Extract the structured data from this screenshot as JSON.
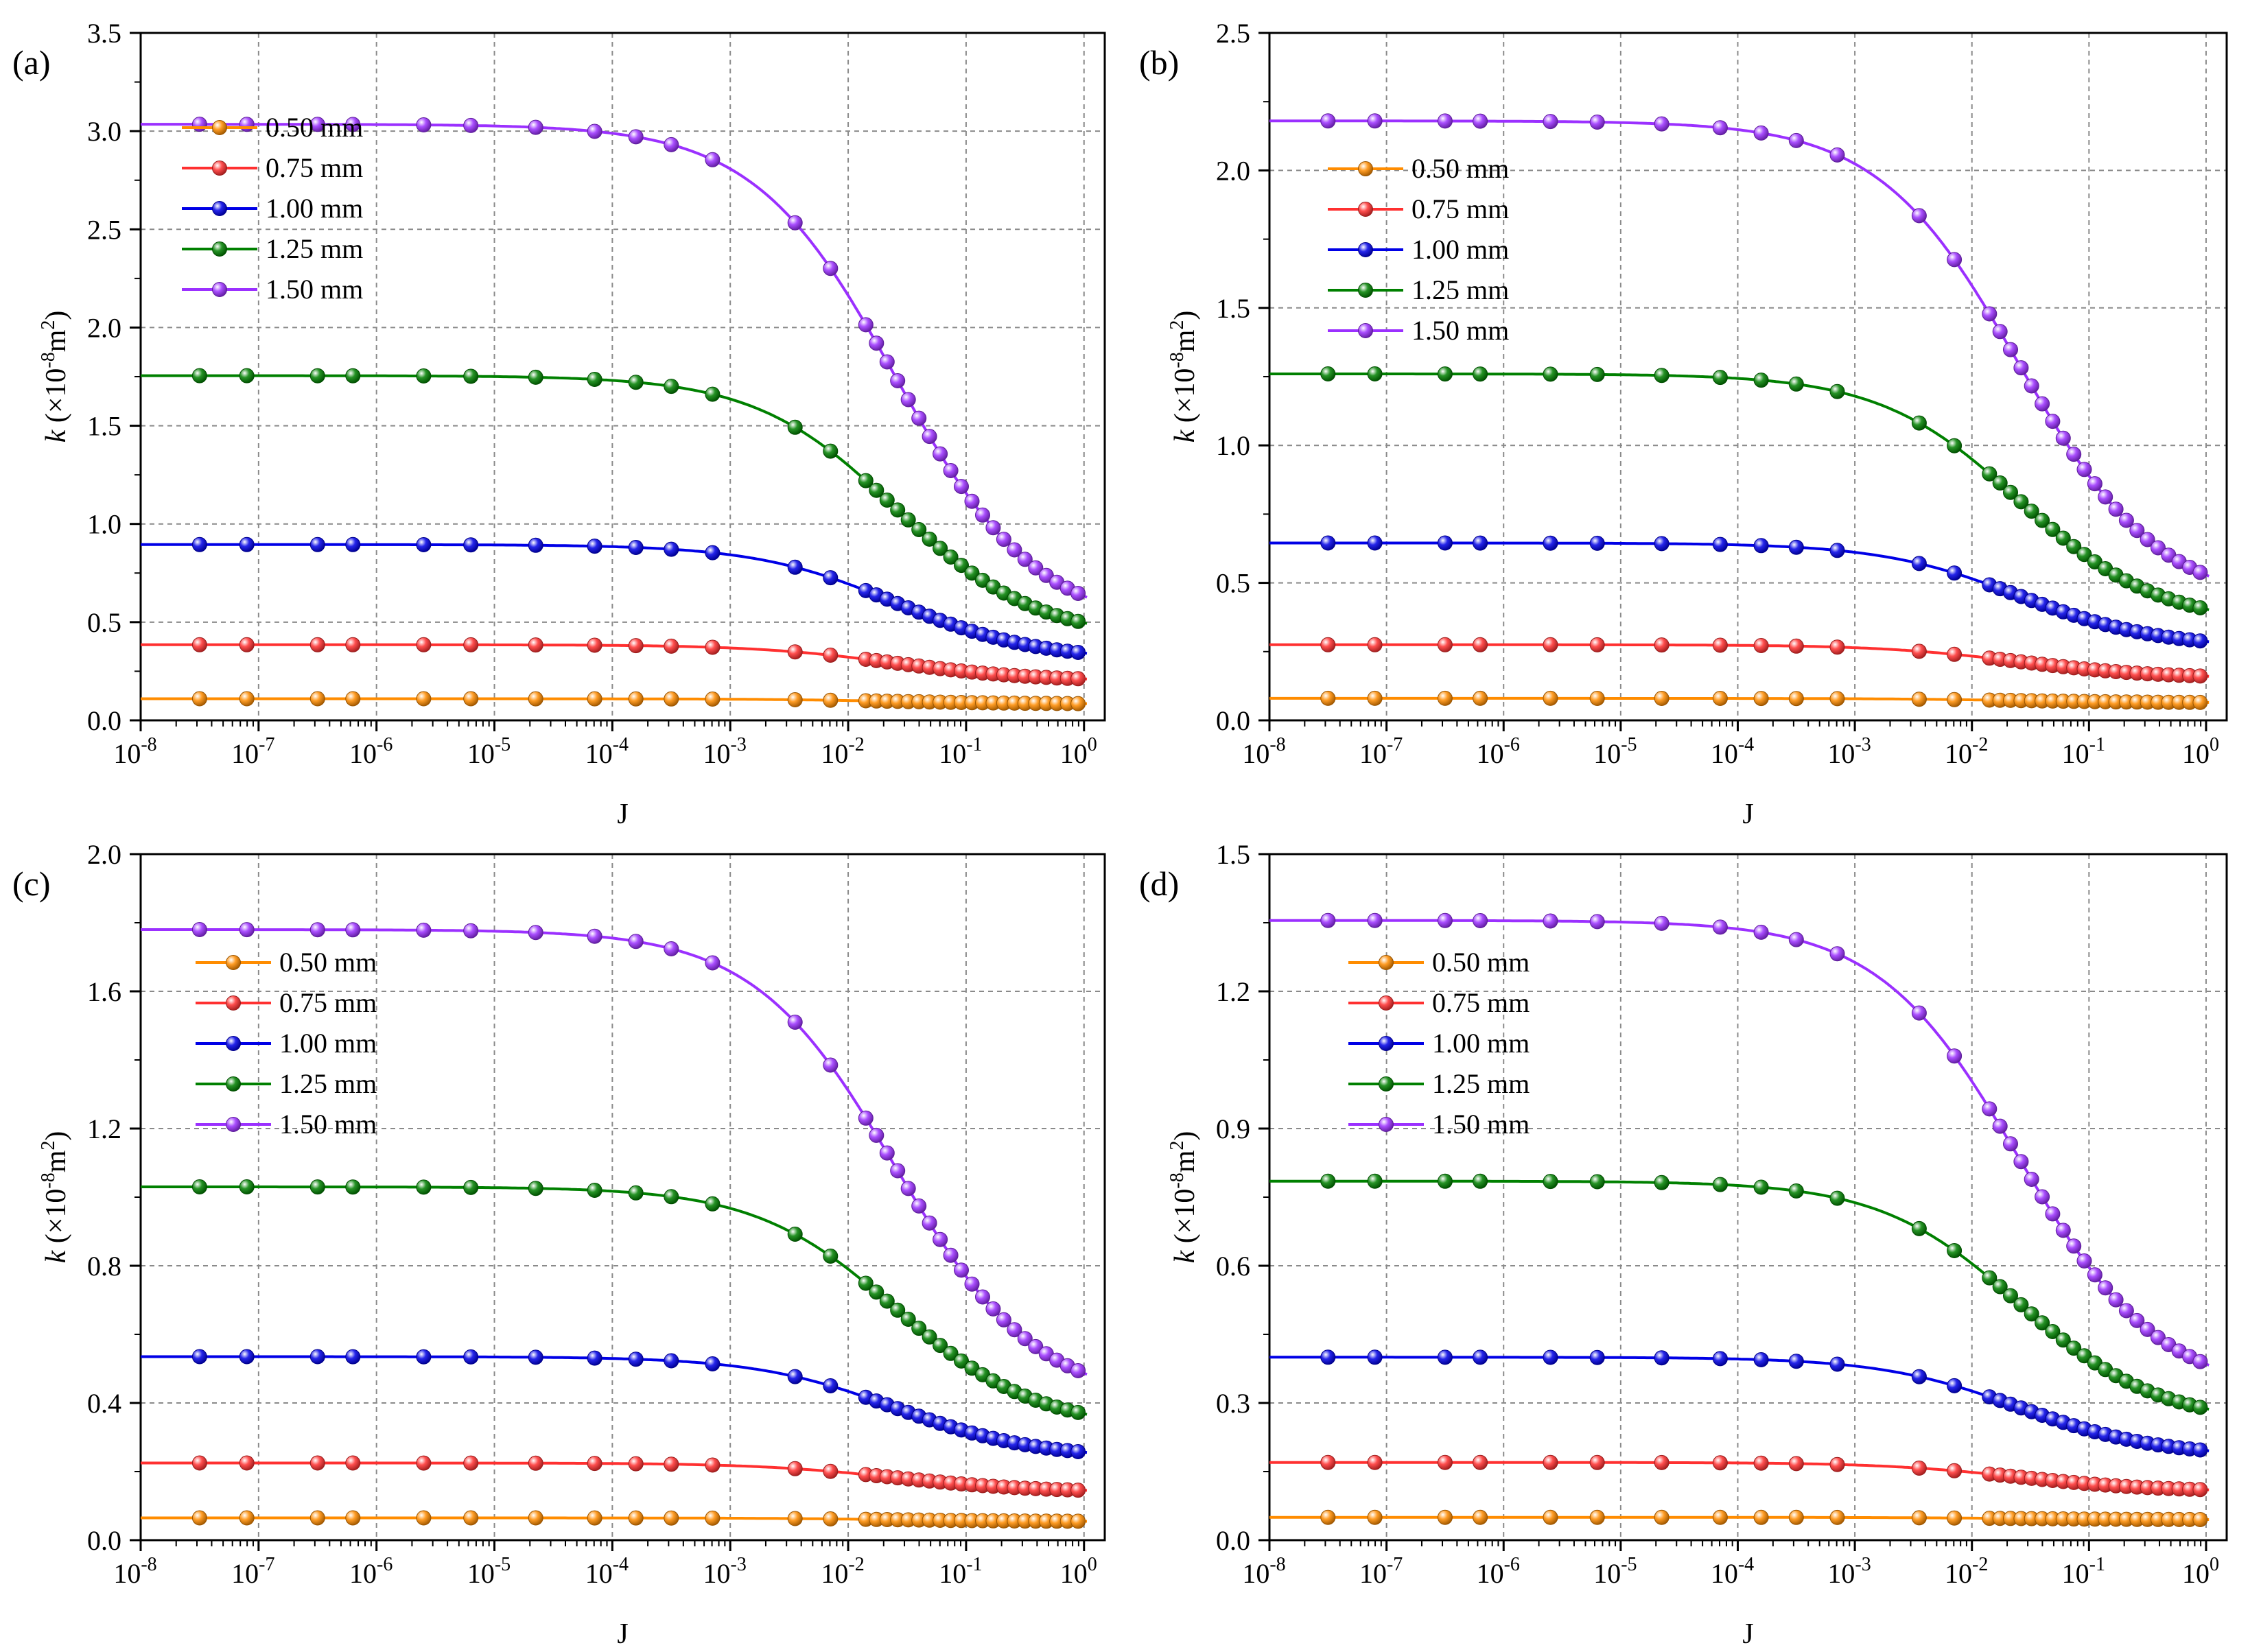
{
  "figure": {
    "legend_entries": [
      "0.50 mm",
      "0.75 mm",
      "1.00 mm",
      "1.25 mm",
      "1.50 mm"
    ],
    "series_colors": [
      "#ff8c00",
      "#ff3030",
      "#0000e6",
      "#008000",
      "#9b30ff"
    ]
  },
  "chart_data": [
    {
      "type": "line",
      "panel_label": "(a)",
      "xlabel": "J",
      "ylabel_prefix": "k",
      "ylabel_rest": " (×10",
      "ylabel_exp": "-8",
      "ylabel_unit": "m",
      "ylabel_unit_exp": "2",
      "ylabel_close": ")",
      "xscale": "log",
      "xlim": [
        1e-08,
        1.5
      ],
      "ylim": [
        0,
        3.5
      ],
      "xtick_exponents": [
        "-8",
        "-7",
        "-6",
        "-5",
        "-4",
        "-3",
        "-2",
        "-1",
        "0"
      ],
      "ytick_values": [
        0,
        0.5,
        1,
        1.5,
        2,
        2.5,
        3,
        3.5
      ],
      "ytick_labels": [
        "0.0",
        "0.5",
        "1.0",
        "1.5",
        "2.0",
        "2.5",
        "3.0",
        "3.5"
      ],
      "grid": true,
      "legend_position": "top-left",
      "series": [
        {
          "name": "0.50 mm",
          "plateau": 0.11,
          "end": 0.085
        },
        {
          "name": "0.75 mm",
          "plateau": 0.385,
          "end": 0.21
        },
        {
          "name": "1.00 mm",
          "plateau": 0.895,
          "end": 0.34
        },
        {
          "name": "1.25 mm",
          "plateau": 1.755,
          "end": 0.49
        },
        {
          "name": "1.50 mm",
          "plateau": 3.035,
          "end": 0.62
        }
      ]
    },
    {
      "type": "line",
      "panel_label": "(b)",
      "xlabel": "J",
      "ylabel_prefix": "k",
      "ylabel_rest": " (×10",
      "ylabel_exp": "-8",
      "ylabel_unit": "m",
      "ylabel_unit_exp": "2",
      "ylabel_close": ")",
      "xscale": "log",
      "xlim": [
        1e-08,
        1.5
      ],
      "ylim": [
        0,
        2.5
      ],
      "xtick_exponents": [
        "-8",
        "-7",
        "-6",
        "-5",
        "-4",
        "-3",
        "-2",
        "-1",
        "0"
      ],
      "ytick_values": [
        0,
        0.5,
        1,
        1.5,
        2,
        2.5
      ],
      "ytick_labels": [
        "0.0",
        "0.5",
        "1.0",
        "1.5",
        "2.0",
        "2.5"
      ],
      "grid": true,
      "legend_position": "top-left",
      "series": [
        {
          "name": "0.50 mm",
          "plateau": 0.08,
          "end": 0.065
        },
        {
          "name": "0.75 mm",
          "plateau": 0.275,
          "end": 0.16
        },
        {
          "name": "1.00 mm",
          "plateau": 0.645,
          "end": 0.285
        },
        {
          "name": "1.25 mm",
          "plateau": 1.26,
          "end": 0.4
        },
        {
          "name": "1.50 mm",
          "plateau": 2.18,
          "end": 0.52
        }
      ]
    },
    {
      "type": "line",
      "panel_label": "(c)",
      "xlabel": "J",
      "ylabel_prefix": "k",
      "ylabel_rest": " (×10",
      "ylabel_exp": "-8",
      "ylabel_unit": "m",
      "ylabel_unit_exp": "2",
      "ylabel_close": ")",
      "xscale": "log",
      "xlim": [
        1e-08,
        1.5
      ],
      "ylim": [
        0,
        2.0
      ],
      "xtick_exponents": [
        "-8",
        "-7",
        "-6",
        "-5",
        "-4",
        "-3",
        "-2",
        "-1",
        "0"
      ],
      "ytick_values": [
        0,
        0.4,
        0.8,
        1.2,
        1.6,
        2.0
      ],
      "ytick_labels": [
        "0.0",
        "0.4",
        "0.8",
        "1.2",
        "1.6",
        "2.0"
      ],
      "grid": true,
      "legend_position": "top-left",
      "series": [
        {
          "name": "0.50 mm",
          "plateau": 0.065,
          "end": 0.055
        },
        {
          "name": "0.75 mm",
          "plateau": 0.225,
          "end": 0.145
        },
        {
          "name": "1.00 mm",
          "plateau": 0.535,
          "end": 0.255
        },
        {
          "name": "1.25 mm",
          "plateau": 1.03,
          "end": 0.365
        },
        {
          "name": "1.50 mm",
          "plateau": 1.78,
          "end": 0.48
        }
      ]
    },
    {
      "type": "line",
      "panel_label": "(d)",
      "xlabel": "J",
      "ylabel_prefix": "k",
      "ylabel_rest": " (×10",
      "ylabel_exp": "-8",
      "ylabel_unit": "m",
      "ylabel_unit_exp": "2",
      "ylabel_close": ")",
      "xscale": "log",
      "xlim": [
        1e-08,
        1.5
      ],
      "ylim": [
        0,
        1.5
      ],
      "xtick_exponents": [
        "-8",
        "-7",
        "-6",
        "-5",
        "-4",
        "-3",
        "-2",
        "-1",
        "0"
      ],
      "ytick_values": [
        0,
        0.3,
        0.6,
        0.9,
        1.2,
        1.5
      ],
      "ytick_labels": [
        "0.0",
        "0.3",
        "0.6",
        "0.9",
        "1.2",
        "1.5"
      ],
      "grid": true,
      "legend_position": "top-left",
      "series": [
        {
          "name": "0.50 mm",
          "plateau": 0.05,
          "end": 0.045
        },
        {
          "name": "0.75 mm",
          "plateau": 0.17,
          "end": 0.11
        },
        {
          "name": "1.00 mm",
          "plateau": 0.4,
          "end": 0.195
        },
        {
          "name": "1.25 mm",
          "plateau": 0.785,
          "end": 0.285
        },
        {
          "name": "1.50 mm",
          "plateau": 1.355,
          "end": 0.38
        }
      ]
    }
  ]
}
